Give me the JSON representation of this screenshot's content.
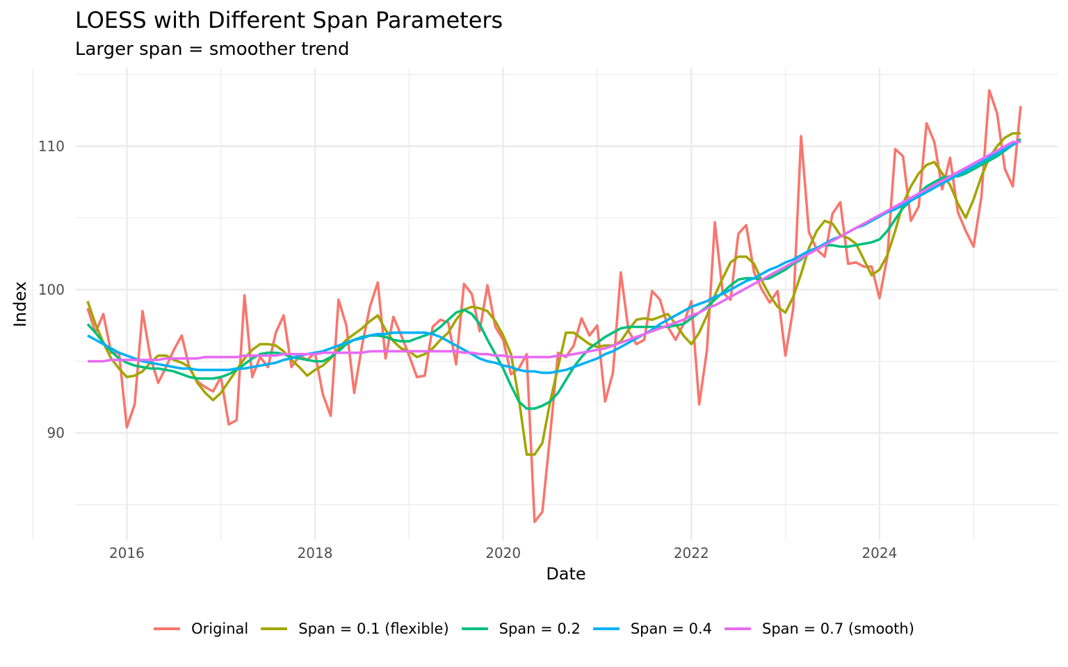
{
  "chart_data": {
    "type": "line",
    "title": "LOESS with Different Span Parameters",
    "subtitle": "Larger span = smoother trend",
    "xlabel": "Date",
    "ylabel": "Index",
    "x_start": "2015-08",
    "x_frequency": "monthly",
    "x_count": 120,
    "xlim": [
      2015.45,
      2025.9
    ],
    "ylim": [
      82.5,
      115.5
    ],
    "x_ticks": [
      2016,
      2018,
      2020,
      2022,
      2024
    ],
    "x_tick_labels": [
      "2016",
      "2018",
      "2020",
      "2022",
      "2024"
    ],
    "y_ticks": [
      90,
      100,
      110
    ],
    "y_tick_labels": [
      "90",
      "100",
      "110"
    ],
    "grid": true,
    "legend_position": "bottom",
    "series": [
      {
        "name": "Original",
        "color": "#F8766D",
        "values": [
          98.7,
          97.0,
          98.3,
          95.6,
          95.6,
          90.4,
          92.0,
          98.5,
          95.3,
          93.5,
          94.6,
          95.8,
          96.8,
          94.5,
          93.6,
          93.2,
          92.9,
          93.9,
          90.6,
          90.9,
          99.6,
          93.9,
          95.3,
          94.6,
          97.0,
          98.2,
          94.6,
          95.4,
          95.1,
          95.6,
          92.7,
          91.2,
          99.3,
          97.5,
          92.8,
          96.1,
          98.8,
          100.5,
          95.2,
          98.1,
          96.8,
          95.4,
          93.9,
          94.0,
          97.4,
          97.9,
          97.7,
          94.8,
          100.4,
          99.7,
          97.1,
          100.3,
          97.4,
          96.5,
          94.1,
          94.5,
          95.5,
          83.8,
          84.5,
          89.9,
          95.6,
          95.3,
          96.1,
          98.0,
          96.8,
          97.5,
          92.2,
          94.2,
          101.2,
          97.1,
          96.2,
          96.5,
          99.9,
          99.3,
          97.4,
          96.5,
          97.6,
          99.2,
          92.0,
          95.8,
          104.7,
          99.8,
          99.3,
          103.9,
          104.5,
          101.2,
          100.0,
          99.1,
          99.9,
          95.4,
          98.7,
          110.7,
          104.0,
          102.8,
          102.3,
          105.3,
          106.1,
          101.8,
          101.9,
          101.6,
          101.6,
          99.4,
          102.3,
          109.8,
          109.3,
          104.8,
          105.8,
          111.6,
          110.3,
          107.0,
          109.2,
          105.4,
          104.1,
          103.0,
          106.5,
          113.9,
          112.3,
          108.4,
          107.2,
          112.8
        ]
      },
      {
        "name": "Span = 0.1 (flexible)",
        "color": "#A3A500",
        "values": [
          99.2,
          97.6,
          96.3,
          95.2,
          94.5,
          93.9,
          94.0,
          94.3,
          94.9,
          95.4,
          95.4,
          95.1,
          94.9,
          94.6,
          93.5,
          92.8,
          92.3,
          92.8,
          93.6,
          94.4,
          95.2,
          95.8,
          96.2,
          96.2,
          96.1,
          95.7,
          95.1,
          94.6,
          94.0,
          94.4,
          94.7,
          95.2,
          95.9,
          96.5,
          96.9,
          97.3,
          97.8,
          98.2,
          97.2,
          96.4,
          95.9,
          95.7,
          95.3,
          95.5,
          95.9,
          96.5,
          97.0,
          97.9,
          98.6,
          98.8,
          98.7,
          98.5,
          97.8,
          96.8,
          95.5,
          92.4,
          88.5,
          88.5,
          89.3,
          92.2,
          94.6,
          97.0,
          97.0,
          96.6,
          96.2,
          96.0,
          96.1,
          96.1,
          96.4,
          97.2,
          97.9,
          98.0,
          97.9,
          98.1,
          98.3,
          97.6,
          96.8,
          96.2,
          97.0,
          98.2,
          99.6,
          100.8,
          101.9,
          102.3,
          102.3,
          101.8,
          100.6,
          99.6,
          98.8,
          98.4,
          99.5,
          101.1,
          102.9,
          104.1,
          104.8,
          104.6,
          103.8,
          103.6,
          103.2,
          102.1,
          101.0,
          101.4,
          102.4,
          104.1,
          106.0,
          107.2,
          108.1,
          108.7,
          108.9,
          108.1,
          107.3,
          106.0,
          105.0,
          106.3,
          107.9,
          109.2,
          110.0,
          110.6,
          110.9,
          110.9
        ]
      },
      {
        "name": "Span = 0.2",
        "color": "#00BF7D",
        "values": [
          97.6,
          97.0,
          96.3,
          95.7,
          95.2,
          94.9,
          94.7,
          94.6,
          94.5,
          94.5,
          94.4,
          94.3,
          94.1,
          93.9,
          93.8,
          93.8,
          93.8,
          93.9,
          94.1,
          94.4,
          94.8,
          95.2,
          95.5,
          95.6,
          95.6,
          95.5,
          95.3,
          95.2,
          95.1,
          95.0,
          95.0,
          95.3,
          95.7,
          96.2,
          96.5,
          96.7,
          96.8,
          96.8,
          96.7,
          96.5,
          96.4,
          96.4,
          96.6,
          96.8,
          97.0,
          97.4,
          97.9,
          98.4,
          98.6,
          98.3,
          97.6,
          96.5,
          95.5,
          94.5,
          93.3,
          92.2,
          91.7,
          91.7,
          91.9,
          92.2,
          92.8,
          93.7,
          94.6,
          95.3,
          95.9,
          96.3,
          96.7,
          97.0,
          97.3,
          97.4,
          97.4,
          97.4,
          97.4,
          97.4,
          97.4,
          97.5,
          97.6,
          98.0,
          98.4,
          98.8,
          99.3,
          99.8,
          100.3,
          100.7,
          100.8,
          100.8,
          100.7,
          100.8,
          101.1,
          101.4,
          101.8,
          102.1,
          102.6,
          102.9,
          103.1,
          103.1,
          103.0,
          103.0,
          103.1,
          103.2,
          103.3,
          103.5,
          104.1,
          104.9,
          105.7,
          106.2,
          106.7,
          107.2,
          107.5,
          107.8,
          107.9,
          107.9,
          108.1,
          108.4,
          108.7,
          109.0,
          109.3,
          109.7,
          110.1,
          110.5
        ]
      },
      {
        "name": "Span = 0.4",
        "color": "#00B0F6",
        "values": [
          96.8,
          96.5,
          96.2,
          95.9,
          95.6,
          95.4,
          95.2,
          95.0,
          94.9,
          94.8,
          94.7,
          94.6,
          94.5,
          94.5,
          94.4,
          94.4,
          94.4,
          94.4,
          94.4,
          94.5,
          94.5,
          94.6,
          94.7,
          94.8,
          94.9,
          95.1,
          95.2,
          95.4,
          95.5,
          95.6,
          95.7,
          95.9,
          96.1,
          96.3,
          96.5,
          96.6,
          96.8,
          96.9,
          96.9,
          97.0,
          97.0,
          97.0,
          97.0,
          97.0,
          96.9,
          96.7,
          96.4,
          96.1,
          95.8,
          95.5,
          95.2,
          95.0,
          94.9,
          94.7,
          94.6,
          94.4,
          94.3,
          94.3,
          94.2,
          94.2,
          94.3,
          94.4,
          94.6,
          94.8,
          95.0,
          95.2,
          95.5,
          95.7,
          96.0,
          96.3,
          96.6,
          96.9,
          97.2,
          97.6,
          97.9,
          98.2,
          98.5,
          98.8,
          99.0,
          99.2,
          99.5,
          99.7,
          100.0,
          100.3,
          100.6,
          100.8,
          101.1,
          101.4,
          101.6,
          101.9,
          102.1,
          102.4,
          102.7,
          102.9,
          103.2,
          103.5,
          103.7,
          104.0,
          104.3,
          104.5,
          104.8,
          105.1,
          105.4,
          105.6,
          105.9,
          106.2,
          106.5,
          106.8,
          107.1,
          107.4,
          107.7,
          108.0,
          108.3,
          108.6,
          108.9,
          109.2,
          109.5,
          109.8,
          110.1,
          110.4
        ]
      },
      {
        "name": "Span = 0.7 (smooth)",
        "color": "#E76BF3",
        "values": [
          95.0,
          95.0,
          95.0,
          95.1,
          95.1,
          95.1,
          95.1,
          95.1,
          95.1,
          95.1,
          95.2,
          95.2,
          95.2,
          95.2,
          95.2,
          95.3,
          95.3,
          95.3,
          95.3,
          95.3,
          95.4,
          95.4,
          95.4,
          95.4,
          95.4,
          95.5,
          95.5,
          95.5,
          95.5,
          95.5,
          95.6,
          95.6,
          95.6,
          95.6,
          95.6,
          95.6,
          95.7,
          95.7,
          95.7,
          95.7,
          95.7,
          95.7,
          95.7,
          95.7,
          95.7,
          95.7,
          95.7,
          95.7,
          95.6,
          95.6,
          95.5,
          95.5,
          95.4,
          95.4,
          95.3,
          95.3,
          95.3,
          95.3,
          95.3,
          95.3,
          95.4,
          95.4,
          95.5,
          95.6,
          95.7,
          95.8,
          95.9,
          96.1,
          96.3,
          96.5,
          96.7,
          96.9,
          97.1,
          97.3,
          97.5,
          97.7,
          97.9,
          98.2,
          98.4,
          98.7,
          98.9,
          99.2,
          99.5,
          99.8,
          100.1,
          100.4,
          100.7,
          101.0,
          101.3,
          101.6,
          101.9,
          102.2,
          102.5,
          102.8,
          103.1,
          103.4,
          103.7,
          104.0,
          104.3,
          104.6,
          104.9,
          105.2,
          105.5,
          105.8,
          106.1,
          106.4,
          106.7,
          107.0,
          107.3,
          107.6,
          107.9,
          108.2,
          108.5,
          108.8,
          109.1,
          109.4,
          109.7,
          110.0,
          110.3,
          110.3
        ]
      }
    ]
  }
}
